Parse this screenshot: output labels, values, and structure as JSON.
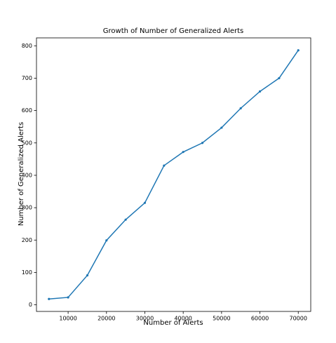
{
  "chart_data": {
    "type": "line",
    "title": "Growth of Number of Generalized Alerts",
    "x_label": "Number of Alerts",
    "y_label": "Number of Generalized Alerts",
    "x": [
      5000,
      10000,
      15000,
      20000,
      25000,
      30000,
      35000,
      40000,
      45000,
      50000,
      55000,
      60000,
      65000,
      70000
    ],
    "series": [
      {
        "name": "Generalized Alerts",
        "color": "#1f77b4",
        "values": [
          18,
          23,
          91,
          199,
          263,
          315,
          430,
          472,
          500,
          547,
          607,
          659,
          700,
          786
        ]
      }
    ],
    "xlim": [
      1750,
      73250
    ],
    "xticks": [
      10000,
      20000,
      30000,
      40000,
      50000,
      60000,
      70000
    ],
    "ylim": [
      -20.4,
      824.4
    ],
    "yticks": [
      0,
      100,
      200,
      300,
      400,
      500,
      600,
      700,
      800
    ]
  }
}
